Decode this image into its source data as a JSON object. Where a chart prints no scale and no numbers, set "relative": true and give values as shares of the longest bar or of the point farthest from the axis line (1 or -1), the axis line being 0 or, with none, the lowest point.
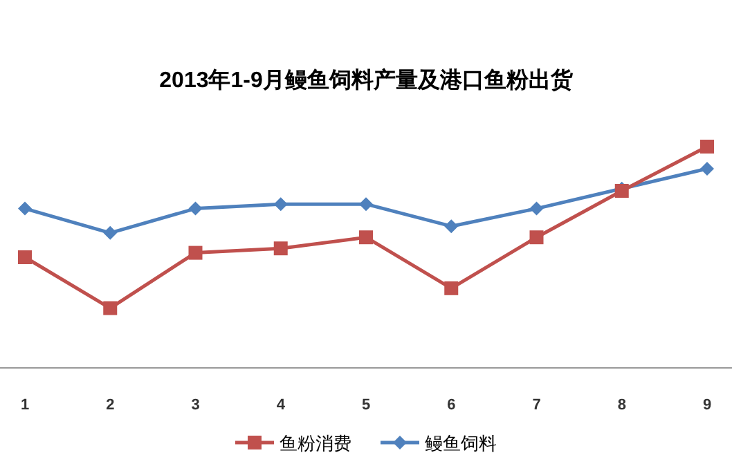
{
  "chart_data": {
    "type": "line",
    "title": "2013年1-9月鳗鱼饲料产量及港口鱼粉出货",
    "categories": [
      "1",
      "2",
      "3",
      "4",
      "5",
      "6",
      "7",
      "8",
      "9"
    ],
    "relative": true,
    "series": [
      {
        "name": "鱼粉消费",
        "color": "#c0504d",
        "marker": "square",
        "values": [
          0.5,
          0.27,
          0.52,
          0.54,
          0.59,
          0.36,
          0.59,
          0.8,
          1
        ]
      },
      {
        "name": "鳗鱼饲料",
        "color": "#4f81bd",
        "marker": "diamond",
        "values": [
          0.72,
          0.61,
          0.72,
          0.74,
          0.74,
          0.64,
          0.72,
          0.81,
          0.9
        ]
      }
    ],
    "legend": "bottom",
    "grid": false
  }
}
